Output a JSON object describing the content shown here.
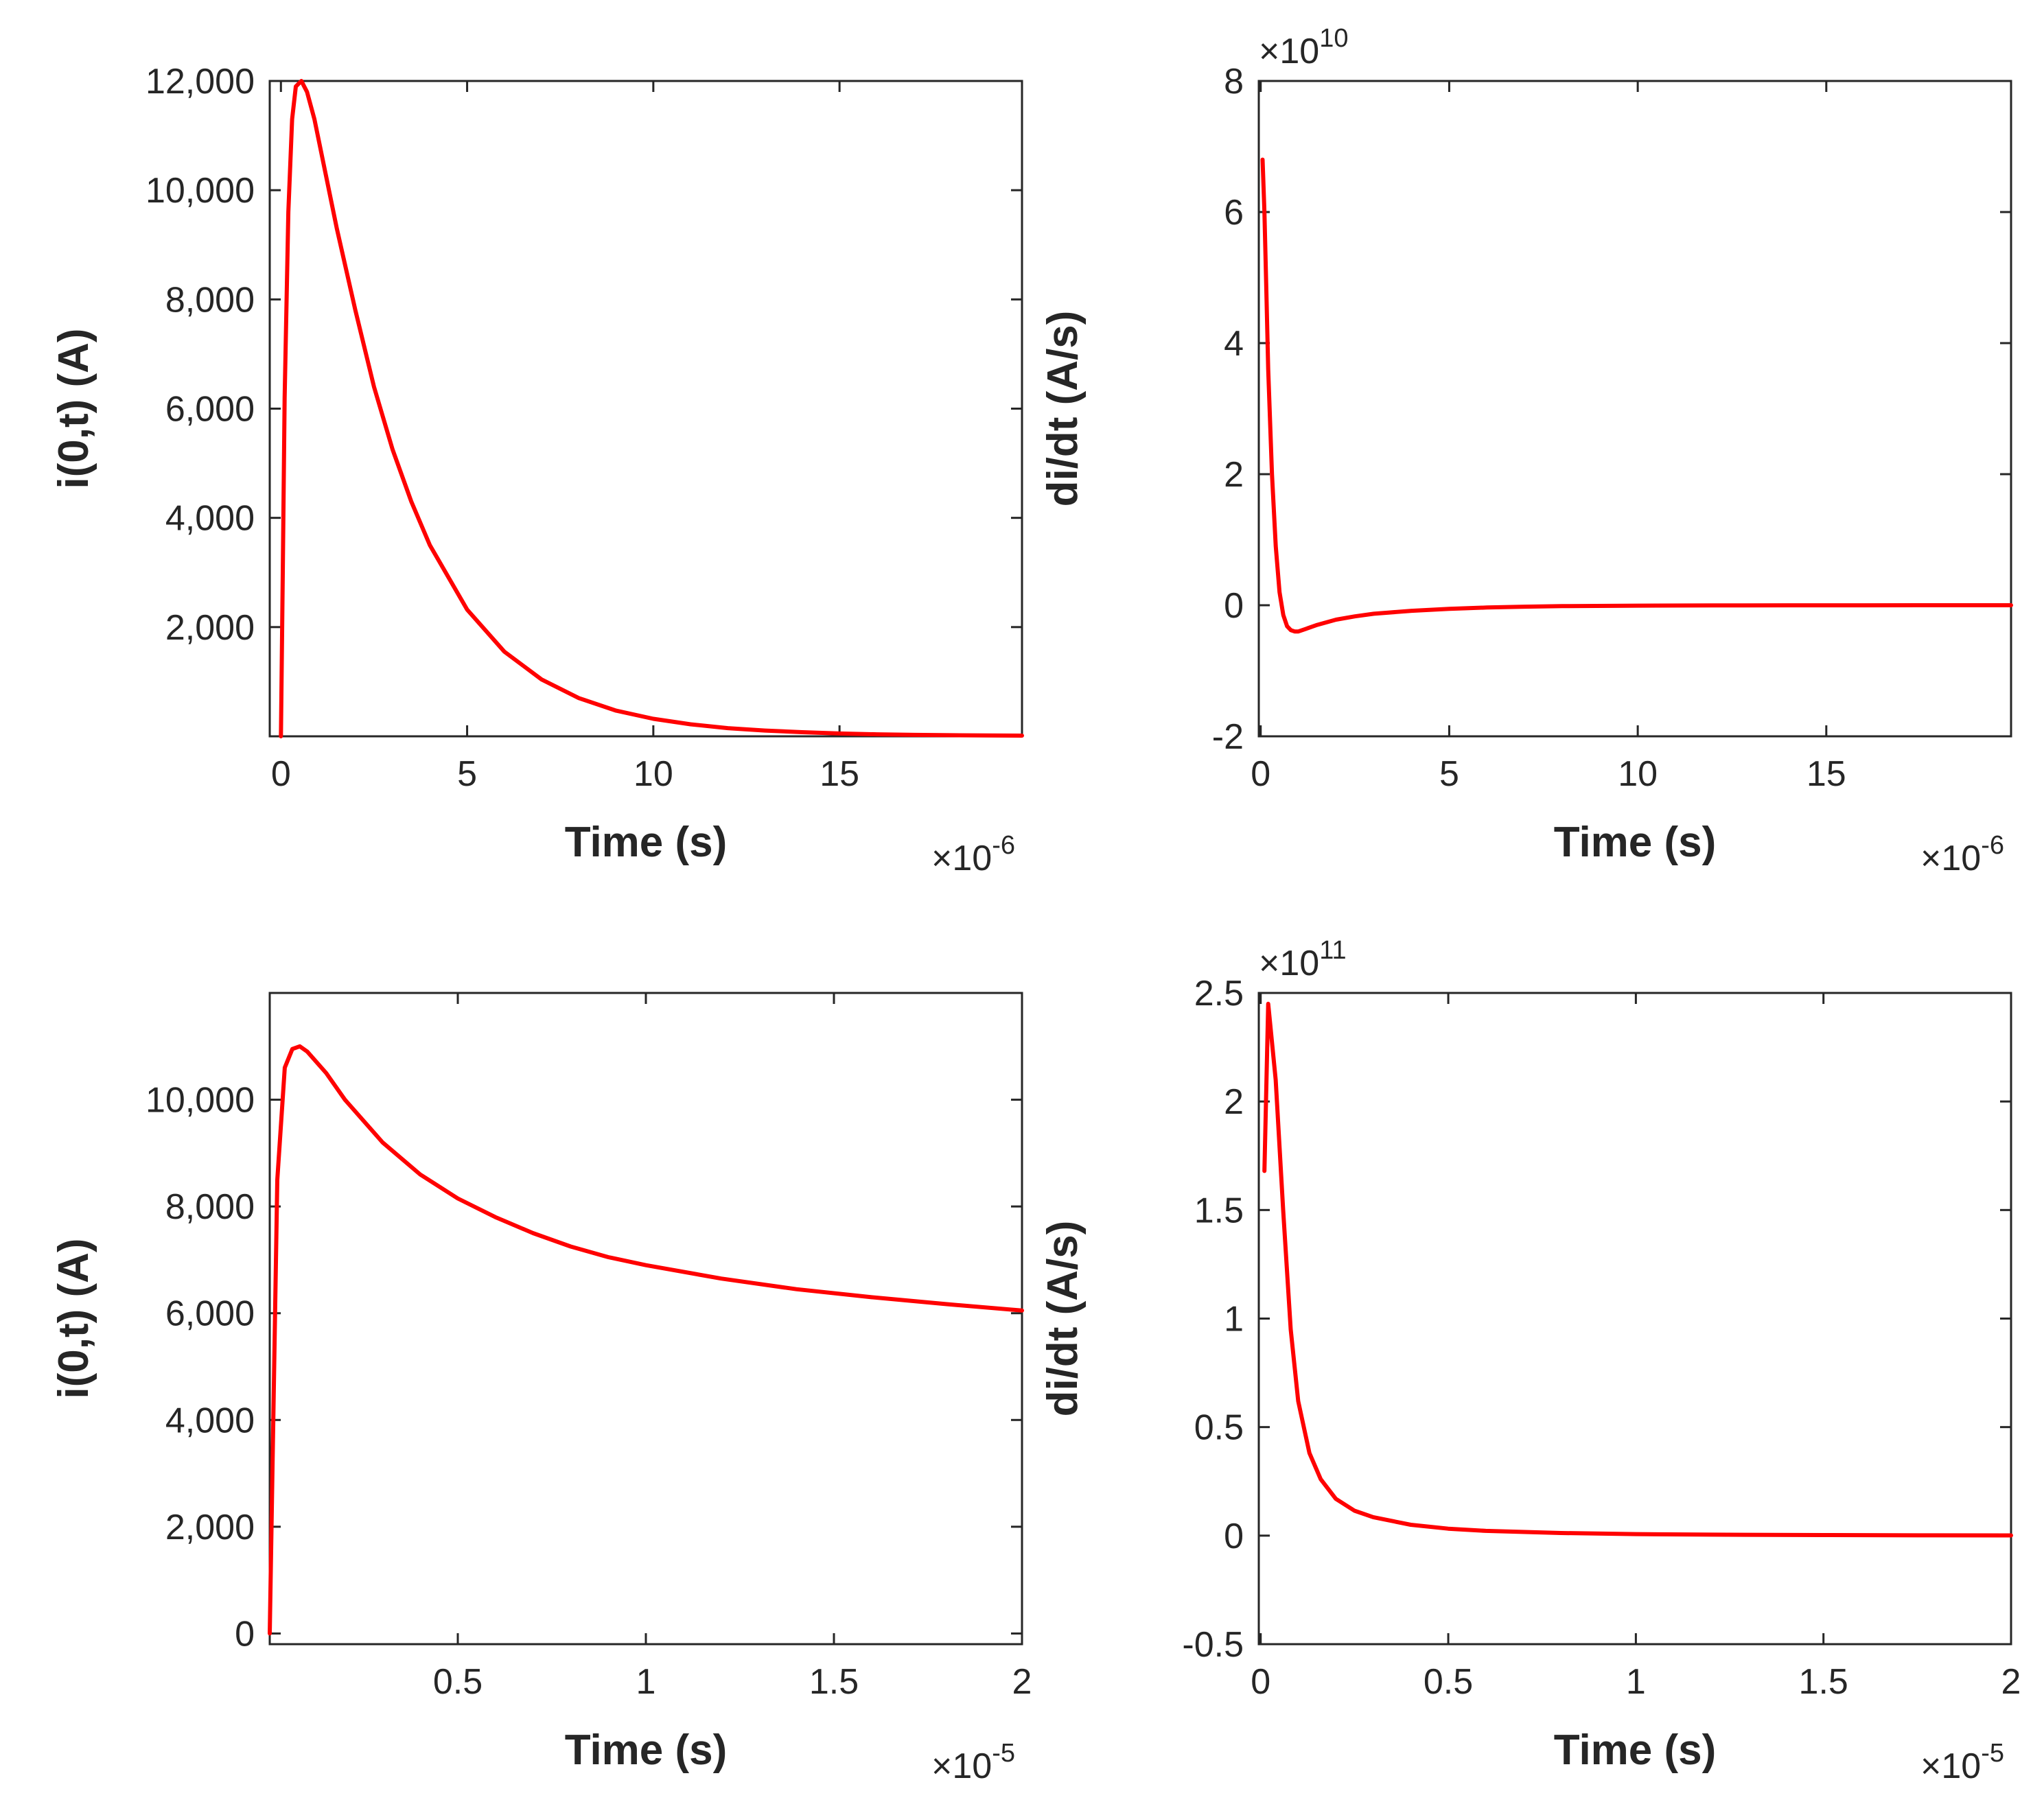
{
  "figure": {
    "background": "#ffffff",
    "axis_color": "#262626",
    "line_color": "#ff0000"
  },
  "chart_data": [
    {
      "type": "line",
      "name": "current-short",
      "xlabel": "Time  (s)",
      "ylabel": "i(0,t)  (A)",
      "xlim": [
        -3e-07,
        1.99e-05
      ],
      "ylim": [
        0,
        12000
      ],
      "x_ticks": [
        0,
        5e-06,
        1e-05,
        1.5e-05
      ],
      "x_tick_labels": [
        "0",
        "5",
        "10",
        "15"
      ],
      "y_ticks": [
        2000,
        4000,
        6000,
        8000,
        10000,
        12000
      ],
      "y_tick_labels": [
        "2,000",
        "4,000",
        "6,000",
        "8,000",
        "10,000",
        "12,000"
      ],
      "x_exponent": {
        "base": "×10",
        "power": "-6"
      },
      "y_exponent": null,
      "series": [
        {
          "name": "i(0,t)",
          "x": [
            0,
            5e-08,
            1e-07,
            2e-07,
            3e-07,
            4e-07,
            5.5e-07,
            7e-07,
            9e-07,
            1.2e-06,
            1.5e-06,
            2e-06,
            2.5e-06,
            3e-06,
            3.5e-06,
            4e-06,
            5e-06,
            6e-06,
            7e-06,
            8e-06,
            9e-06,
            1e-05,
            1.1e-05,
            1.2e-05,
            1.3e-05,
            1.4e-05,
            1.5e-05,
            1.6e-05,
            1.7e-05,
            1.8e-05,
            1.9e-05,
            1.99e-05
          ],
          "y": [
            0,
            3000,
            6200,
            9600,
            11300,
            11900,
            12000,
            11800,
            11300,
            10300,
            9300,
            7800,
            6400,
            5250,
            4300,
            3500,
            2320,
            1550,
            1040,
            700,
            470,
            320,
            220,
            150,
            105,
            75,
            52,
            37,
            27,
            20,
            15,
            12
          ]
        }
      ]
    },
    {
      "type": "line",
      "name": "derivative-short",
      "xlabel": "Time  (s)",
      "ylabel": "di/dt  (A/s)",
      "xlim": [
        -5e-08,
        1.99e-05
      ],
      "ylim": [
        -2,
        8
      ],
      "x_ticks": [
        0,
        5e-06,
        1e-05,
        1.5e-05
      ],
      "x_tick_labels": [
        "0",
        "5",
        "10",
        "15"
      ],
      "y_ticks": [
        -2,
        0,
        2,
        4,
        6,
        8
      ],
      "y_tick_labels": [
        "-2",
        "0",
        "2",
        "4",
        "6",
        "8"
      ],
      "x_exponent": {
        "base": "×10",
        "power": "-6"
      },
      "y_exponent": {
        "base": "×10",
        "power": "10"
      },
      "series": [
        {
          "name": "di/dt",
          "x": [
            5e-08,
            1e-07,
            1.5e-07,
            2e-07,
            3e-07,
            4e-07,
            5e-07,
            6e-07,
            7e-07,
            8e-07,
            9e-07,
            1e-06,
            1.2e-06,
            1.5e-06,
            2e-06,
            2.5e-06,
            3e-06,
            4e-06,
            5e-06,
            6e-06,
            7e-06,
            8e-06,
            1e-05,
            1.2e-05,
            1.4e-05,
            1.6e-05,
            1.8e-05,
            1.99e-05
          ],
          "y": [
            6.8,
            6.0,
            4.8,
            3.6,
            2.0,
            0.9,
            0.2,
            -0.15,
            -0.32,
            -0.38,
            -0.4,
            -0.4,
            -0.36,
            -0.3,
            -0.22,
            -0.17,
            -0.13,
            -0.085,
            -0.055,
            -0.035,
            -0.022,
            -0.014,
            -0.006,
            -0.003,
            -0.0015,
            -0.0008,
            -0.0004,
            -0.0002
          ]
        }
      ]
    },
    {
      "type": "line",
      "name": "current-long",
      "xlabel": "Time  (s)",
      "ylabel": "i(0,t)  (A)",
      "xlim": [
        0,
        2e-05
      ],
      "ylim": [
        -200,
        12000
      ],
      "x_ticks": [
        5e-06,
        1e-05,
        1.5e-05,
        2e-05
      ],
      "x_tick_labels": [
        "0.5",
        "1",
        "1.5",
        "2"
      ],
      "y_ticks": [
        0,
        2000,
        4000,
        6000,
        8000,
        10000
      ],
      "y_tick_labels": [
        "0",
        "2,000",
        "4,000",
        "6,000",
        "8,000",
        "10,000"
      ],
      "x_exponent": {
        "base": "×10",
        "power": "-5"
      },
      "y_exponent": null,
      "series": [
        {
          "name": "i(0,t)",
          "x": [
            0,
            2e-07,
            4e-07,
            6e-07,
            8e-07,
            1e-06,
            1.5e-06,
            2e-06,
            3e-06,
            4e-06,
            5e-06,
            6e-06,
            7e-06,
            8e-06,
            9e-06,
            1e-05,
            1.2e-05,
            1.4e-05,
            1.6e-05,
            1.8e-05,
            2e-05
          ],
          "y": [
            0,
            8500,
            10600,
            10950,
            11000,
            10900,
            10500,
            10000,
            9200,
            8600,
            8150,
            7800,
            7500,
            7250,
            7050,
            6900,
            6650,
            6450,
            6300,
            6170,
            6050
          ]
        }
      ]
    },
    {
      "type": "line",
      "name": "derivative-long",
      "xlabel": "Time  (s)",
      "ylabel": "di/dt  (A/s)",
      "xlim": [
        -5e-08,
        2e-05
      ],
      "ylim": [
        -0.5,
        2.5
      ],
      "x_ticks": [
        0,
        5e-06,
        1e-05,
        1.5e-05,
        2e-05
      ],
      "x_tick_labels": [
        "0",
        "0.5",
        "1",
        "1.5",
        "2"
      ],
      "y_ticks": [
        -0.5,
        0,
        0.5,
        1,
        1.5,
        2,
        2.5
      ],
      "y_tick_labels": [
        "-0.5",
        "0",
        "0.5",
        "1",
        "1.5",
        "2",
        "2.5"
      ],
      "x_exponent": {
        "base": "×10",
        "power": "-5"
      },
      "y_exponent": {
        "base": "×10",
        "power": "11"
      },
      "series": [
        {
          "name": "di/dt",
          "x": [
            1e-07,
            2e-07,
            4e-07,
            6e-07,
            8e-07,
            1e-06,
            1.3e-06,
            1.6e-06,
            2e-06,
            2.5e-06,
            3e-06,
            4e-06,
            5e-06,
            6e-06,
            8e-06,
            1e-05,
            1.2e-05,
            1.5e-05,
            1.8e-05,
            2e-05
          ],
          "y": [
            1.68,
            2.45,
            2.1,
            1.5,
            0.95,
            0.62,
            0.38,
            0.26,
            0.17,
            0.115,
            0.085,
            0.05,
            0.032,
            0.022,
            0.012,
            0.007,
            0.0045,
            0.0025,
            0.0015,
            0.001
          ]
        }
      ]
    }
  ]
}
